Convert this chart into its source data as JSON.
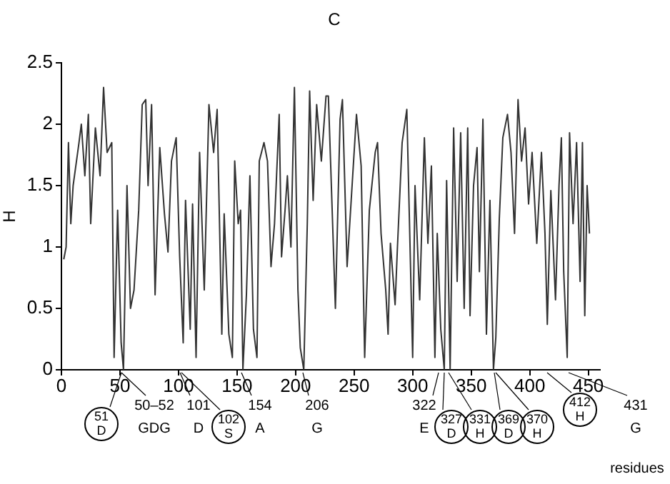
{
  "chart_data": {
    "type": "line",
    "title": "C",
    "xlabel": "residues",
    "ylabel": "H",
    "x": [
      2,
      4,
      6,
      8,
      10,
      15,
      17,
      20,
      23,
      25,
      29,
      33,
      36,
      39,
      43,
      45,
      48,
      51,
      53,
      56,
      59,
      62,
      66,
      69,
      72,
      74,
      77,
      80,
      84,
      88,
      91,
      94,
      98,
      101,
      104,
      106,
      110,
      112,
      115,
      118,
      122,
      126,
      130,
      133,
      137,
      139,
      143,
      146,
      148,
      151,
      153,
      155,
      158,
      161,
      164,
      167,
      169,
      173,
      176,
      179,
      182,
      186,
      188,
      191,
      193,
      196,
      199,
      202,
      204,
      207,
      210,
      212,
      215,
      218,
      222,
      226,
      228,
      230,
      234,
      238,
      240,
      244,
      252,
      256,
      259,
      263,
      268,
      270,
      273,
      277,
      279,
      281,
      285,
      287,
      291,
      295,
      300,
      302,
      306,
      310,
      313,
      316,
      319,
      321,
      324,
      327,
      329,
      332,
      335,
      338,
      341,
      344,
      347,
      349,
      352,
      355,
      357,
      360,
      363,
      366,
      369,
      371,
      374,
      377,
      381,
      384,
      387,
      390,
      393,
      396,
      399,
      402,
      406,
      410,
      413,
      415,
      418,
      422,
      425,
      427,
      429,
      432,
      434,
      437,
      440,
      443,
      445,
      447,
      449,
      451
    ],
    "series": [
      {
        "color": "#333333",
        "values": [
          0.9,
          1.0,
          1.85,
          1.19,
          1.5,
          1.85,
          2.0,
          1.58,
          2.08,
          1.19,
          1.97,
          1.58,
          2.3,
          1.77,
          1.85,
          0.1,
          1.3,
          0.22,
          0,
          1.5,
          0.5,
          0.65,
          1.3,
          2.16,
          2.2,
          1.5,
          2.16,
          0.61,
          1.81,
          1.27,
          0.96,
          1.7,
          1.89,
          0.92,
          0.22,
          1.38,
          0.33,
          1.35,
          0.1,
          1.77,
          0.65,
          2.16,
          1.77,
          2.12,
          0.29,
          1.27,
          0.29,
          0.1,
          1.7,
          1.19,
          1.3,
          0,
          0.61,
          1.58,
          0.33,
          0.1,
          1.7,
          1.85,
          1.7,
          0.84,
          1.19,
          2.08,
          0.92,
          1.3,
          1.58,
          1.0,
          2.3,
          0.65,
          0.18,
          0,
          1.19,
          2.27,
          1.38,
          2.16,
          1.7,
          2.23,
          2.23,
          1.66,
          0.5,
          2.04,
          2.2,
          0.84,
          2.08,
          1.66,
          0.1,
          1.3,
          1.77,
          1.85,
          1.11,
          0.65,
          0.29,
          1.03,
          0.53,
          1.0,
          1.85,
          2.12,
          0.1,
          1.5,
          0.57,
          1.89,
          1.03,
          1.66,
          0.1,
          1.11,
          0.33,
          0,
          1.54,
          0,
          1.97,
          0.72,
          1.93,
          0.5,
          1.97,
          0.44,
          1.5,
          1.81,
          0.8,
          2.04,
          0.29,
          1.38,
          0,
          0.26,
          1.23,
          1.89,
          2.08,
          1.77,
          1.11,
          2.2,
          1.7,
          1.97,
          1.35,
          1.77,
          1.03,
          1.77,
          1.11,
          0.37,
          1.46,
          0.57,
          1.5,
          1.89,
          0.8,
          0.1,
          1.93,
          1.19,
          1.85,
          0.72,
          1.85,
          0.44,
          1.5,
          1.11
        ]
      }
    ],
    "xlim": [
      0,
      460
    ],
    "xticks": [
      0,
      50,
      100,
      150,
      200,
      250,
      300,
      350,
      400,
      450
    ],
    "ylim": [
      0,
      2.5
    ],
    "yticks": [
      0,
      0.5,
      1,
      1.5,
      2,
      2.5
    ],
    "grid": false,
    "legend": false,
    "marker": "none",
    "line_style": "solid",
    "annotations": [
      "51 D",
      "50–52 GDG",
      "101 D",
      "102 S",
      "154 A",
      "206 G",
      "322 E",
      "327 D",
      "331 H",
      "369 D",
      "370 H",
      "412 H",
      "431 G"
    ]
  }
}
